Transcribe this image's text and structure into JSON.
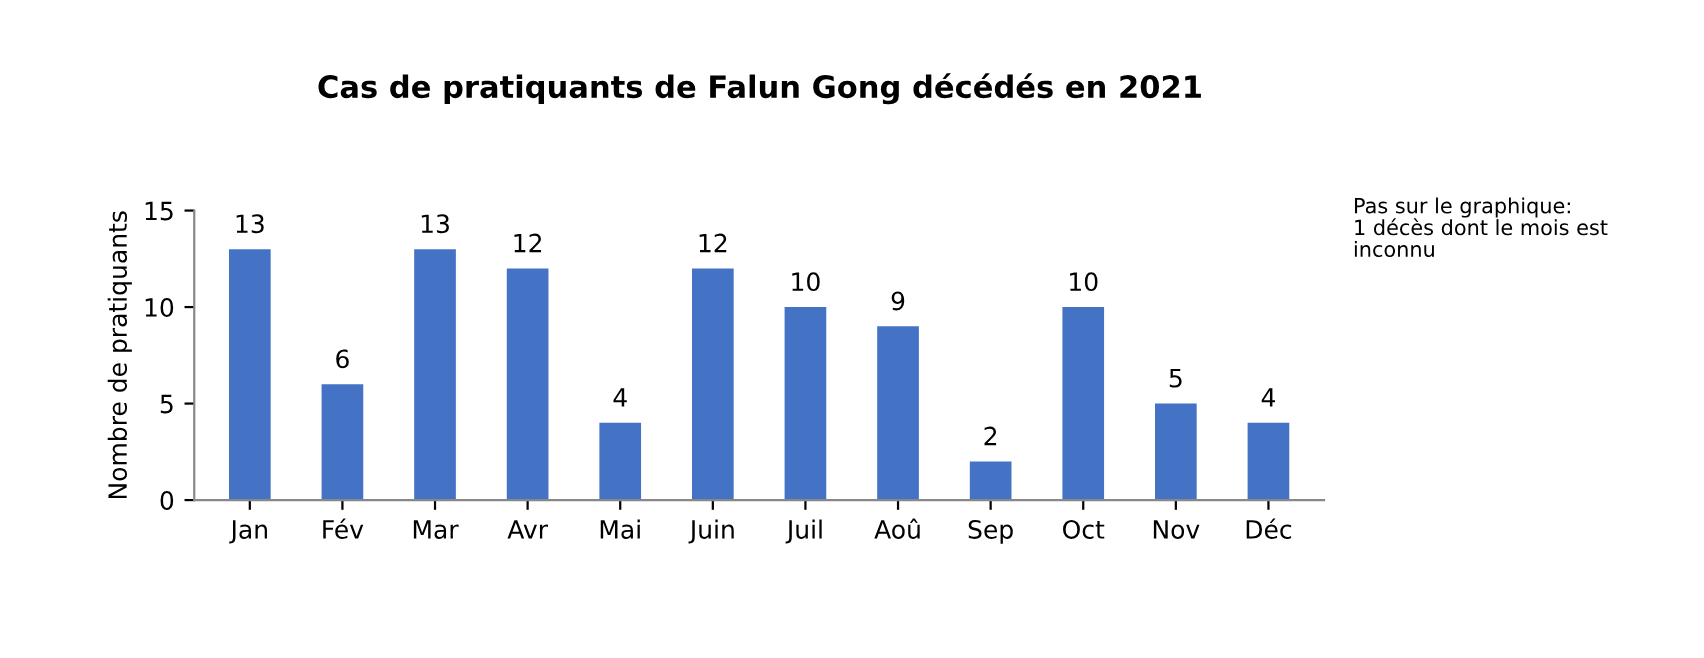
{
  "chart_data": {
    "type": "bar",
    "title": "Cas de pratiquants de Falun Gong décédés en 2021",
    "ylabel": "Nombre de pratiquants",
    "categories": [
      "Jan",
      "Fév",
      "Mar",
      "Avr",
      "Mai",
      "Juin",
      "Juil",
      "Aoû",
      "Sep",
      "Oct",
      "Nov",
      "Déc"
    ],
    "values": [
      13,
      6,
      13,
      12,
      4,
      12,
      10,
      9,
      2,
      10,
      5,
      4
    ],
    "color": "#4472c4",
    "ylim": [
      0,
      15
    ],
    "yticks": [
      0,
      5,
      10,
      15
    ],
    "data_labels": true,
    "annotations": [
      "Pas sur le graphique:\n1 décès dont le mois est\ninconnu"
    ]
  }
}
